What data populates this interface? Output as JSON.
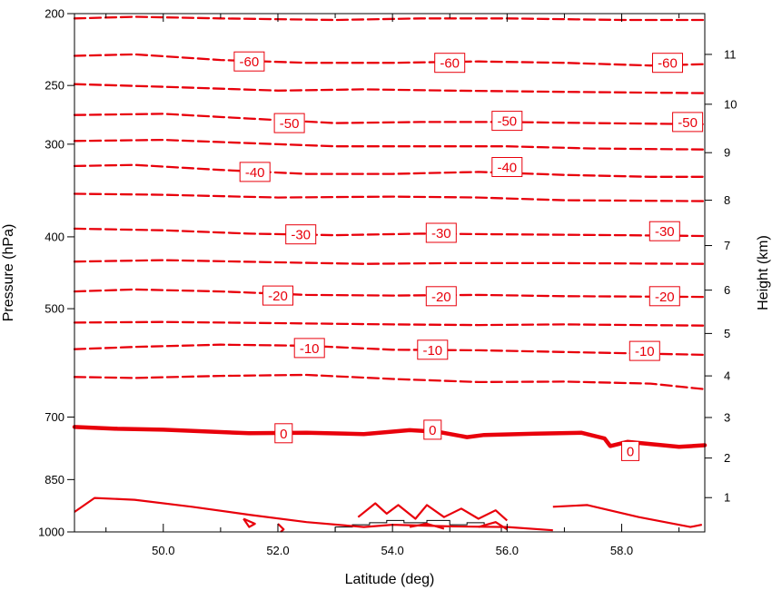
{
  "chart_data": {
    "type": "contour",
    "title": "",
    "xlabel": "Latitude (deg)",
    "ylabel_left": "Pressure (hPa)",
    "ylabel_right": "Height (km)",
    "xlim": [
      48.45,
      59.45
    ],
    "ylim_pressure": [
      1000,
      200
    ],
    "y_scale": "log",
    "x_ticks": [
      {
        "value": 50,
        "label": "50.0"
      },
      {
        "value": 52,
        "label": "52.0"
      },
      {
        "value": 54,
        "label": "54.0"
      },
      {
        "value": 56,
        "label": "56.0"
      },
      {
        "value": 58,
        "label": "58.0"
      }
    ],
    "pressure_ticks": [
      {
        "value": 200,
        "label": "200"
      },
      {
        "value": 250,
        "label": "250"
      },
      {
        "value": 300,
        "label": "300"
      },
      {
        "value": 400,
        "label": "400"
      },
      {
        "value": 500,
        "label": "500"
      },
      {
        "value": 700,
        "label": "700"
      },
      {
        "value": 850,
        "label": "850"
      },
      {
        "value": 1000,
        "label": "1000"
      }
    ],
    "height_ticks": [
      {
        "value": 1,
        "pressure": 899,
        "label": "1"
      },
      {
        "value": 2,
        "pressure": 795,
        "label": "2"
      },
      {
        "value": 3,
        "pressure": 701,
        "label": "3"
      },
      {
        "value": 4,
        "pressure": 616,
        "label": "4"
      },
      {
        "value": 5,
        "pressure": 540,
        "label": "5"
      },
      {
        "value": 6,
        "pressure": 472,
        "label": "6"
      },
      {
        "value": 7,
        "pressure": 411,
        "label": "7"
      },
      {
        "value": 8,
        "pressure": 357,
        "label": "8"
      },
      {
        "value": 9,
        "pressure": 308,
        "label": "9"
      },
      {
        "value": 10,
        "pressure": 265,
        "label": "10"
      },
      {
        "value": 11,
        "pressure": 227,
        "label": "11"
      }
    ],
    "color": "#e8000b",
    "contours": [
      {
        "level": -65,
        "points": [
          [
            48.45,
            203
          ],
          [
            49.5,
            202
          ],
          [
            51,
            203
          ],
          [
            53,
            204
          ],
          [
            54.5,
            203
          ],
          [
            56,
            203
          ],
          [
            58,
            204
          ],
          [
            59.45,
            204
          ]
        ]
      },
      {
        "level": -60,
        "points": [
          [
            48.45,
            228
          ],
          [
            49.5,
            227
          ],
          [
            51,
            231
          ],
          [
            52.5,
            233
          ],
          [
            54,
            233
          ],
          [
            55.5,
            232
          ],
          [
            57,
            233
          ],
          [
            58.5,
            235
          ],
          [
            59.45,
            234
          ]
        ]
      },
      {
        "level": -55,
        "points": [
          [
            48.45,
            249
          ],
          [
            50,
            251
          ],
          [
            52,
            254
          ],
          [
            53.5,
            253
          ],
          [
            55,
            254
          ],
          [
            57,
            255
          ],
          [
            59.45,
            256
          ]
        ]
      },
      {
        "level": -50,
        "points": [
          [
            48.45,
            274
          ],
          [
            50,
            273
          ],
          [
            51.5,
            277
          ],
          [
            53,
            281
          ],
          [
            54.5,
            280
          ],
          [
            56,
            280
          ],
          [
            57.5,
            281
          ],
          [
            59.45,
            282
          ]
        ]
      },
      {
        "level": -45,
        "points": [
          [
            48.45,
            297
          ],
          [
            50,
            296
          ],
          [
            51.5,
            299
          ],
          [
            53,
            302
          ],
          [
            54.5,
            302
          ],
          [
            56,
            302
          ],
          [
            57.5,
            304
          ],
          [
            59.45,
            305
          ]
        ]
      },
      {
        "level": -40,
        "points": [
          [
            48.45,
            321
          ],
          [
            49.5,
            320
          ],
          [
            51,
            325
          ],
          [
            52.5,
            329
          ],
          [
            54,
            329
          ],
          [
            55.5,
            327
          ],
          [
            57,
            330
          ],
          [
            58.5,
            332
          ],
          [
            59.45,
            332
          ]
        ]
      },
      {
        "level": -35,
        "points": [
          [
            48.45,
            350
          ],
          [
            50,
            351
          ],
          [
            52,
            354
          ],
          [
            54,
            353
          ],
          [
            55.5,
            354
          ],
          [
            57,
            357
          ],
          [
            59.45,
            358
          ]
        ]
      },
      {
        "level": -30,
        "points": [
          [
            48.45,
            390
          ],
          [
            50,
            392
          ],
          [
            51.5,
            396
          ],
          [
            53,
            398
          ],
          [
            54.5,
            396
          ],
          [
            56,
            397
          ],
          [
            58,
            398
          ],
          [
            59.45,
            399
          ]
        ]
      },
      {
        "level": -25,
        "points": [
          [
            48.45,
            432
          ],
          [
            50,
            430
          ],
          [
            52,
            433
          ],
          [
            53.5,
            435
          ],
          [
            55,
            434
          ],
          [
            57,
            434
          ],
          [
            59.45,
            435
          ]
        ]
      },
      {
        "level": -20,
        "points": [
          [
            48.45,
            474
          ],
          [
            49.5,
            471
          ],
          [
            51,
            474
          ],
          [
            52.5,
            479
          ],
          [
            54,
            480
          ],
          [
            55.5,
            479
          ],
          [
            57,
            481
          ],
          [
            59.45,
            482
          ]
        ]
      },
      {
        "level": -15,
        "points": [
          [
            48.45,
            522
          ],
          [
            50,
            521
          ],
          [
            52,
            523
          ],
          [
            54,
            525
          ],
          [
            55.5,
            526
          ],
          [
            57,
            525
          ],
          [
            59.45,
            527
          ]
        ]
      },
      {
        "level": -10,
        "points": [
          [
            48.45,
            567
          ],
          [
            49.5,
            563
          ],
          [
            51,
            559
          ],
          [
            52.5,
            561
          ],
          [
            54,
            568
          ],
          [
            55.5,
            569
          ],
          [
            57,
            572
          ],
          [
            58.5,
            575
          ],
          [
            59.45,
            577
          ]
        ]
      },
      {
        "level": -5,
        "points": [
          [
            48.45,
            618
          ],
          [
            49.5,
            620
          ],
          [
            51,
            616
          ],
          [
            52.5,
            614
          ],
          [
            54,
            622
          ],
          [
            55.5,
            628
          ],
          [
            57,
            627
          ],
          [
            58.5,
            631
          ],
          [
            59.45,
            642
          ]
        ]
      },
      {
        "level": 0,
        "points": [
          [
            48.45,
            722
          ],
          [
            49.2,
            726
          ],
          [
            50,
            728
          ],
          [
            51.5,
            736
          ],
          [
            52.5,
            735
          ],
          [
            53.5,
            738
          ],
          [
            54.3,
            729
          ],
          [
            54.8,
            733
          ],
          [
            55.3,
            745
          ],
          [
            55.6,
            740
          ],
          [
            56.5,
            737
          ],
          [
            57.3,
            735
          ],
          [
            57.7,
            748
          ],
          [
            57.8,
            766
          ],
          [
            58.1,
            756
          ],
          [
            59,
            768
          ],
          [
            59.45,
            764
          ]
        ]
      }
    ],
    "near_surface_contours": [
      [
        [
          48.45,
          940
        ],
        [
          48.8,
          900
        ],
        [
          49.5,
          905
        ],
        [
          50.5,
          925
        ],
        [
          51.5,
          948
        ],
        [
          52.5,
          970
        ],
        [
          53.5,
          985
        ],
        [
          54,
          978
        ],
        [
          55,
          983
        ],
        [
          56,
          985
        ],
        [
          56.8,
          995
        ]
      ],
      [
        [
          56.8,
          925
        ],
        [
          57.4,
          920
        ],
        [
          58.3,
          955
        ],
        [
          59.2,
          985
        ],
        [
          59.4,
          978
        ]
      ],
      [
        [
          51.4,
          960
        ],
        [
          51.6,
          975
        ],
        [
          51.5,
          985
        ],
        [
          51.4,
          960
        ]
      ],
      [
        [
          52,
          975
        ],
        [
          52.1,
          992
        ],
        [
          52.05,
          1000
        ]
      ],
      [
        [
          53.4,
          955
        ],
        [
          53.7,
          915
        ],
        [
          53.9,
          945
        ],
        [
          54.1,
          920
        ],
        [
          54.4,
          960
        ],
        [
          54.6,
          920
        ],
        [
          54.9,
          955
        ],
        [
          55.2,
          930
        ],
        [
          55.5,
          960
        ],
        [
          55.8,
          935
        ],
        [
          56,
          965
        ]
      ],
      [
        [
          54.3,
          985
        ],
        [
          54.6,
          975
        ],
        [
          54.9,
          990
        ]
      ],
      [
        [
          55.5,
          985
        ],
        [
          55.8,
          970
        ],
        [
          56.0,
          992
        ]
      ]
    ],
    "labels": [
      {
        "text": "-60",
        "lat": 51.5,
        "p": 232
      },
      {
        "text": "-60",
        "lat": 55.0,
        "p": 233
      },
      {
        "text": "-60",
        "lat": 58.8,
        "p": 233
      },
      {
        "text": "-50",
        "lat": 52.2,
        "p": 281
      },
      {
        "text": "-50",
        "lat": 56.0,
        "p": 279
      },
      {
        "text": "-50",
        "lat": 59.15,
        "p": 280
      },
      {
        "text": "-40",
        "lat": 51.6,
        "p": 327
      },
      {
        "text": "-40",
        "lat": 56.0,
        "p": 322
      },
      {
        "text": "-30",
        "lat": 52.4,
        "p": 397
      },
      {
        "text": "-30",
        "lat": 54.85,
        "p": 395
      },
      {
        "text": "-30",
        "lat": 58.75,
        "p": 393
      },
      {
        "text": "-20",
        "lat": 52.0,
        "p": 480
      },
      {
        "text": "-20",
        "lat": 54.85,
        "p": 481
      },
      {
        "text": "-20",
        "lat": 58.75,
        "p": 481
      },
      {
        "text": "-10",
        "lat": 52.55,
        "p": 565
      },
      {
        "text": "-10",
        "lat": 54.7,
        "p": 568
      },
      {
        "text": "-10",
        "lat": 58.4,
        "p": 570
      },
      {
        "text": "0",
        "lat": 52.1,
        "p": 736
      },
      {
        "text": "0",
        "lat": 54.7,
        "p": 728
      },
      {
        "text": "0",
        "lat": 58.15,
        "p": 778
      }
    ],
    "terrain": [
      [
        53.0,
        1000
      ],
      [
        53.0,
        985
      ],
      [
        53.3,
        985
      ],
      [
        53.3,
        978
      ],
      [
        53.6,
        978
      ],
      [
        53.6,
        972
      ],
      [
        53.9,
        972
      ],
      [
        53.9,
        965
      ],
      [
        54.2,
        965
      ],
      [
        54.2,
        972
      ],
      [
        54.6,
        972
      ],
      [
        54.6,
        965
      ],
      [
        55.0,
        965
      ],
      [
        55.0,
        978
      ],
      [
        55.3,
        978
      ],
      [
        55.3,
        972
      ],
      [
        55.6,
        972
      ],
      [
        55.6,
        985
      ],
      [
        55.9,
        985
      ],
      [
        55.9,
        1000
      ]
    ]
  }
}
